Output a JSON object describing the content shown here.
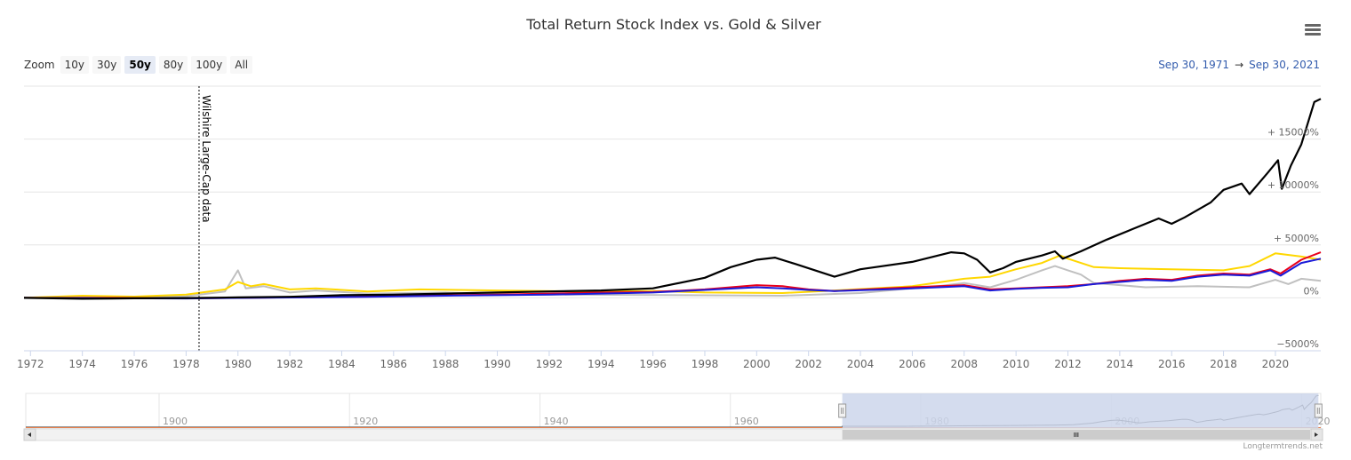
{
  "title": "Total Return Stock Index vs. Gold & Silver",
  "menu_icon": "hamburger-menu-icon",
  "zoom": {
    "label": "Zoom",
    "buttons": [
      "10y",
      "30y",
      "50y",
      "80y",
      "100y",
      "All"
    ],
    "selected": "50y"
  },
  "range": {
    "from": "Sep 30, 1971",
    "arrow": "→",
    "to": "Sep 30, 2021"
  },
  "annotation": {
    "label": "Wilshire Large-Cap data",
    "year": 1978.5
  },
  "credit": "Longtermtrends.net",
  "colors": {
    "stock_index": "#000000",
    "red_series": "#e8001c",
    "blue_series": "#1a1ad8",
    "gold": "#ffd700",
    "silver": "#c0c0c0",
    "grid": "#e6e6e6",
    "navigator_mask": "#ccd6eb"
  },
  "navigator": {
    "ticks": [
      "1900",
      "1920",
      "1940",
      "1960",
      "1980",
      "2000",
      "2020"
    ]
  },
  "chart_data": {
    "type": "line",
    "title": "Total Return Stock Index vs. Gold & Silver",
    "xlim": [
      1971.75,
      2021.75
    ],
    "ylim": [
      -5000,
      20000
    ],
    "x_ticks": [
      1972,
      1974,
      1976,
      1978,
      1980,
      1982,
      1984,
      1986,
      1988,
      1990,
      1992,
      1994,
      1996,
      1998,
      2000,
      2002,
      2004,
      2006,
      2008,
      2010,
      2012,
      2014,
      2016,
      2018,
      2020
    ],
    "y_ticks": [
      {
        "value": -5000,
        "label": "−5000%"
      },
      {
        "value": 0,
        "label": "0%"
      },
      {
        "value": 5000,
        "label": "+ 5000%"
      },
      {
        "value": 10000,
        "label": "+ 10000%"
      },
      {
        "value": 15000,
        "label": "+ 15000%"
      }
    ],
    "grid": true,
    "legend": "none",
    "series": [
      {
        "color": "#c0c0c0",
        "points": [
          [
            1971.75,
            0
          ],
          [
            1974,
            120
          ],
          [
            1976,
            60
          ],
          [
            1978,
            150
          ],
          [
            1979.5,
            600
          ],
          [
            1980.0,
            2600
          ],
          [
            1980.3,
            900
          ],
          [
            1981,
            1100
          ],
          [
            1982,
            500
          ],
          [
            1983,
            700
          ],
          [
            1985,
            400
          ],
          [
            1988,
            500
          ],
          [
            1990,
            300
          ],
          [
            1993,
            300
          ],
          [
            1997,
            250
          ],
          [
            2001,
            200
          ],
          [
            2004,
            450
          ],
          [
            2006,
            900
          ],
          [
            2007,
            1100
          ],
          [
            2008,
            1400
          ],
          [
            2009,
            1000
          ],
          [
            2010,
            1700
          ],
          [
            2011,
            2600
          ],
          [
            2011.5,
            3000
          ],
          [
            2012,
            2600
          ],
          [
            2012.5,
            2200
          ],
          [
            2013,
            1400
          ],
          [
            2015,
            1000
          ],
          [
            2017,
            1100
          ],
          [
            2019,
            1000
          ],
          [
            2020,
            1700
          ],
          [
            2020.5,
            1300
          ],
          [
            2021,
            1800
          ],
          [
            2021.75,
            1600
          ]
        ]
      },
      {
        "color": "#ffd700",
        "points": [
          [
            1971.75,
            0
          ],
          [
            1974,
            200
          ],
          [
            1976,
            120
          ],
          [
            1978,
            300
          ],
          [
            1979.5,
            800
          ],
          [
            1980.0,
            1500
          ],
          [
            1980.5,
            1100
          ],
          [
            1981,
            1300
          ],
          [
            1982,
            800
          ],
          [
            1983,
            900
          ],
          [
            1985,
            600
          ],
          [
            1987,
            800
          ],
          [
            1990,
            700
          ],
          [
            1993,
            600
          ],
          [
            1996,
            650
          ],
          [
            1998,
            500
          ],
          [
            2001,
            450
          ],
          [
            2003,
            700
          ],
          [
            2006,
            1100
          ],
          [
            2008,
            1800
          ],
          [
            2009,
            2000
          ],
          [
            2010,
            2700
          ],
          [
            2011,
            3300
          ],
          [
            2011.7,
            4000
          ],
          [
            2012,
            3700
          ],
          [
            2013,
            2900
          ],
          [
            2014,
            2800
          ],
          [
            2016,
            2700
          ],
          [
            2018,
            2600
          ],
          [
            2019,
            3000
          ],
          [
            2020,
            4200
          ],
          [
            2021,
            3900
          ],
          [
            2021.75,
            3600
          ]
        ]
      },
      {
        "color": "#e8001c",
        "points": [
          [
            1971.75,
            0
          ],
          [
            1975,
            0
          ],
          [
            1978,
            -40
          ],
          [
            1982,
            40
          ],
          [
            1985,
            120
          ],
          [
            1988,
            250
          ],
          [
            1990,
            300
          ],
          [
            1992,
            400
          ],
          [
            1994,
            500
          ],
          [
            1996,
            550
          ],
          [
            1998,
            800
          ],
          [
            2000,
            1200
          ],
          [
            2001,
            1100
          ],
          [
            2002,
            800
          ],
          [
            2003,
            650
          ],
          [
            2005,
            900
          ],
          [
            2007,
            1100
          ],
          [
            2008,
            1200
          ],
          [
            2009,
            800
          ],
          [
            2010,
            900
          ],
          [
            2011,
            1000
          ],
          [
            2012,
            1100
          ],
          [
            2013,
            1300
          ],
          [
            2014,
            1600
          ],
          [
            2015,
            1800
          ],
          [
            2016,
            1700
          ],
          [
            2017,
            2100
          ],
          [
            2018,
            2300
          ],
          [
            2019,
            2200
          ],
          [
            2019.8,
            2700
          ],
          [
            2020.2,
            2300
          ],
          [
            2021,
            3600
          ],
          [
            2021.75,
            4300
          ]
        ]
      },
      {
        "color": "#1a1ad8",
        "points": [
          [
            1971.75,
            0
          ],
          [
            1975,
            -40
          ],
          [
            1978,
            -60
          ],
          [
            1982,
            30
          ],
          [
            1985,
            100
          ],
          [
            1988,
            200
          ],
          [
            1990,
            250
          ],
          [
            1992,
            300
          ],
          [
            1994,
            400
          ],
          [
            1996,
            500
          ],
          [
            1998,
            750
          ],
          [
            2000,
            1000
          ],
          [
            2001,
            900
          ],
          [
            2002,
            750
          ],
          [
            2003,
            650
          ],
          [
            2005,
            800
          ],
          [
            2007,
            1000
          ],
          [
            2008,
            1100
          ],
          [
            2009,
            700
          ],
          [
            2010,
            850
          ],
          [
            2011,
            950
          ],
          [
            2012,
            1000
          ],
          [
            2013,
            1300
          ],
          [
            2014,
            1500
          ],
          [
            2015,
            1700
          ],
          [
            2016,
            1600
          ],
          [
            2017,
            2000
          ],
          [
            2018,
            2200
          ],
          [
            2019,
            2100
          ],
          [
            2019.8,
            2600
          ],
          [
            2020.2,
            2100
          ],
          [
            2021,
            3300
          ],
          [
            2021.75,
            3700
          ]
        ]
      },
      {
        "color": "#000000",
        "points": [
          [
            1971.75,
            0
          ],
          [
            1974,
            -80
          ],
          [
            1976,
            -40
          ],
          [
            1978,
            -20
          ],
          [
            1980,
            40
          ],
          [
            1982,
            100
          ],
          [
            1984,
            250
          ],
          [
            1986,
            300
          ],
          [
            1988,
            400
          ],
          [
            1990,
            500
          ],
          [
            1992,
            600
          ],
          [
            1994,
            700
          ],
          [
            1996,
            900
          ],
          [
            1998,
            1900
          ],
          [
            1999,
            2900
          ],
          [
            2000,
            3600
          ],
          [
            2000.7,
            3800
          ],
          [
            2001.5,
            3200
          ],
          [
            2002.5,
            2400
          ],
          [
            2003,
            2000
          ],
          [
            2004,
            2700
          ],
          [
            2006,
            3400
          ],
          [
            2007.5,
            4300
          ],
          [
            2008,
            4200
          ],
          [
            2008.5,
            3600
          ],
          [
            2009.0,
            2400
          ],
          [
            2009.5,
            2800
          ],
          [
            2010,
            3400
          ],
          [
            2011,
            4000
          ],
          [
            2011.5,
            4400
          ],
          [
            2011.8,
            3700
          ],
          [
            2012.5,
            4400
          ],
          [
            2013.5,
            5500
          ],
          [
            2014.5,
            6500
          ],
          [
            2015.5,
            7500
          ],
          [
            2016,
            7000
          ],
          [
            2016.5,
            7600
          ],
          [
            2017.5,
            9000
          ],
          [
            2018,
            10200
          ],
          [
            2018.7,
            10800
          ],
          [
            2019,
            9800
          ],
          [
            2019.7,
            11800
          ],
          [
            2020.1,
            13000
          ],
          [
            2020.25,
            10300
          ],
          [
            2020.6,
            12500
          ],
          [
            2021,
            14500
          ],
          [
            2021.5,
            18500
          ],
          [
            2021.75,
            18800
          ]
        ]
      }
    ]
  }
}
